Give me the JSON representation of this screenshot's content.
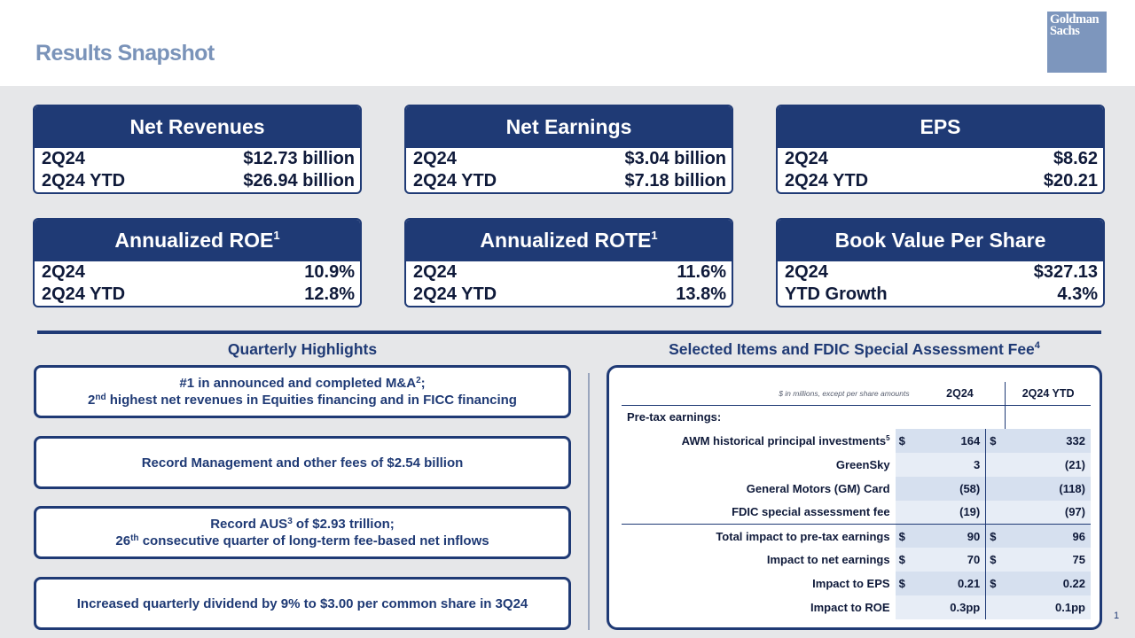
{
  "header": {
    "title": "Results Snapshot",
    "logo_line1": "Goldman",
    "logo_line2": "Sachs"
  },
  "cards": [
    {
      "title": "Net Revenues",
      "sup": "",
      "rows": [
        {
          "label": "2Q24",
          "value": "$12.73 billion"
        },
        {
          "label": "2Q24 YTD",
          "value": "$26.94 billion"
        }
      ]
    },
    {
      "title": "Net Earnings",
      "sup": "",
      "rows": [
        {
          "label": "2Q24",
          "value": "$3.04 billion"
        },
        {
          "label": "2Q24 YTD",
          "value": "$7.18 billion"
        }
      ]
    },
    {
      "title": "EPS",
      "sup": "",
      "rows": [
        {
          "label": "2Q24",
          "value": "$8.62"
        },
        {
          "label": "2Q24 YTD",
          "value": "$20.21"
        }
      ]
    },
    {
      "title": "Annualized ROE",
      "sup": "1",
      "rows": [
        {
          "label": "2Q24",
          "value": "10.9%"
        },
        {
          "label": "2Q24 YTD",
          "value": "12.8%"
        }
      ]
    },
    {
      "title": "Annualized ROTE",
      "sup": "1",
      "rows": [
        {
          "label": "2Q24",
          "value": "11.6%"
        },
        {
          "label": "2Q24 YTD",
          "value": "13.8%"
        }
      ]
    },
    {
      "title": "Book Value Per Share",
      "sup": "",
      "rows": [
        {
          "label": "2Q24",
          "value": "$327.13"
        },
        {
          "label": "YTD Growth",
          "value": "4.3%"
        }
      ]
    }
  ],
  "highlights": {
    "title": "Quarterly Highlights",
    "items": [
      {
        "l1a": "#1 in announced and completed M&A",
        "l1sup": "2",
        "l1b": ";",
        "l2a": "2",
        "l2sup": "nd",
        "l2b": " highest net revenues in Equities financing and in FICC financing"
      },
      {
        "text": "Record Management and other fees of $2.54 billion"
      },
      {
        "l1a": "Record AUS",
        "l1sup": "3",
        "l1b": " of $2.93 trillion;",
        "l2a": "26",
        "l2sup": "th",
        "l2b": " consecutive quarter of long-term fee-based net inflows"
      },
      {
        "text": "Increased quarterly dividend by 9% to $3.00 per common share in 3Q24"
      }
    ]
  },
  "selected": {
    "title": "Selected Items and FDIC Special Assessment Fee",
    "title_sup": "4",
    "note": "$ in millions, except per share amounts",
    "col1": "2Q24",
    "col2": "2Q24 YTD",
    "section": "Pre-tax earnings:",
    "rows": [
      {
        "label": "AWM historical principal investments",
        "sup": "5",
        "cur1": "$",
        "v1": "164",
        "cur2": "$",
        "v2": "332"
      },
      {
        "label": "GreenSky",
        "sup": "",
        "cur1": "",
        "v1": "3",
        "cur2": "",
        "v2": "(21)"
      },
      {
        "label": "General Motors (GM) Card",
        "sup": "",
        "cur1": "",
        "v1": "(58)",
        "cur2": "",
        "v2": "(118)"
      },
      {
        "label": "FDIC special assessment fee",
        "sup": "",
        "cur1": "",
        "v1": "(19)",
        "cur2": "",
        "v2": "(97)"
      },
      {
        "label": "Total impact to pre-tax earnings",
        "sup": "",
        "cur1": "$",
        "v1": "90",
        "cur2": "$",
        "v2": "96"
      },
      {
        "label": "Impact to net earnings",
        "sup": "",
        "cur1": "$",
        "v1": "70",
        "cur2": "$",
        "v2": "75"
      },
      {
        "label": "Impact to EPS",
        "sup": "",
        "cur1": "$",
        "v1": "0.21",
        "cur2": "$",
        "v2": "0.22"
      },
      {
        "label": "Impact to ROE",
        "sup": "",
        "cur1": "",
        "v1": "0.3pp",
        "cur2": "",
        "v2": "0.1pp"
      }
    ]
  },
  "footer": {
    "page_number": "1"
  }
}
